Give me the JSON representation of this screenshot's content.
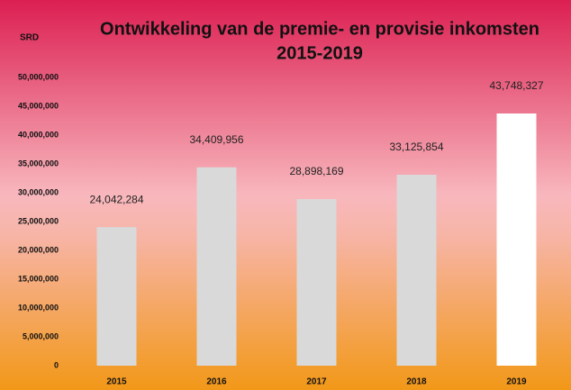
{
  "chart_data": {
    "type": "bar",
    "title": [
      "Ontwikkeling van de premie- en provisie inkomsten",
      "2015-2019"
    ],
    "y_label": "SRD",
    "categories": [
      "2015",
      "2016",
      "2017",
      "2018",
      "2019"
    ],
    "values": [
      24042284,
      34409956,
      28898169,
      33125854,
      43748327
    ],
    "value_labels": [
      "24,042,284",
      "34,409,956",
      "28,898,169",
      "33,125,854",
      "43,748,327"
    ],
    "colors": [
      "#d9d9d9",
      "#d9d9d9",
      "#d9d9d9",
      "#d9d9d9",
      "#ffffff"
    ],
    "ylim": [
      0,
      50000000
    ],
    "yticks": [
      0,
      {
        "value": 5000000,
        "label": "5,000,000"
      },
      {
        "value": 10000000,
        "label": "10,000,000"
      },
      {
        "value": 15000000,
        "label": "15,000,000"
      },
      {
        "value": 20000000,
        "label": "20,000,000"
      },
      {
        "value": 25000000,
        "label": "25,000,000"
      },
      {
        "value": 30000000,
        "label": "30,000,000"
      },
      {
        "value": 35000000,
        "label": "35,000,000"
      },
      {
        "value": 40000000,
        "label": "40,000,000"
      },
      {
        "value": 45000000,
        "label": "45,000,000"
      },
      {
        "value": 50000000,
        "label": "50,000,000"
      }
    ],
    "grid": false
  }
}
